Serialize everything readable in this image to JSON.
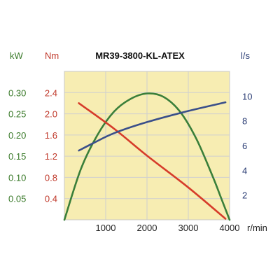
{
  "chart_data": {
    "type": "line",
    "title": "MR39-3800-KL-ATEX",
    "plot_bg": "#f7edb2",
    "grid": true,
    "x": {
      "range": [
        0,
        4000
      ],
      "ticks": [
        1000,
        2000,
        3000,
        4000
      ],
      "tick_labels": [
        "1000",
        "2000",
        "3000",
        "4000"
      ],
      "unit": "r/min",
      "color": "#222222"
    },
    "axes": {
      "power": {
        "unit": "kW",
        "range": [
          0,
          0.35
        ],
        "ticks": [
          0.05,
          0.1,
          0.15,
          0.2,
          0.25,
          0.3
        ],
        "tick_labels": [
          "0.05",
          "0.10",
          "0.15",
          "0.20",
          "0.25",
          "0.30"
        ],
        "color": "#3a7a2a"
      },
      "torque": {
        "unit": "Nm",
        "range": [
          0,
          2.8
        ],
        "ticks": [
          0.4,
          0.8,
          1.2,
          1.6,
          2.0,
          2.4
        ],
        "tick_labels": [
          "0.4",
          "0.8",
          "1.2",
          "1.6",
          "2.0",
          "2.4"
        ],
        "color": "#c0392b"
      },
      "flow": {
        "unit": "l/s",
        "range": [
          0,
          12
        ],
        "ticks": [
          2,
          4,
          6,
          8,
          10
        ],
        "tick_labels": [
          "2",
          "4",
          "6",
          "8",
          "10"
        ],
        "color": "#2c3e75"
      }
    },
    "series": [
      {
        "axis": "power",
        "color": "#3a7f3a",
        "points": [
          [
            0,
            0
          ],
          [
            400,
            0.12
          ],
          [
            800,
            0.2
          ],
          [
            1200,
            0.255
          ],
          [
            1600,
            0.285
          ],
          [
            2000,
            0.298
          ],
          [
            2400,
            0.29
          ],
          [
            2800,
            0.255
          ],
          [
            3200,
            0.19
          ],
          [
            3600,
            0.1
          ],
          [
            3800,
            0.05
          ],
          [
            4000,
            0
          ]
        ]
      },
      {
        "axis": "torque",
        "color": "#d63c2a",
        "points": [
          [
            350,
            2.2
          ],
          [
            1200,
            1.72
          ],
          [
            2000,
            1.21
          ],
          [
            3000,
            0.61
          ],
          [
            3900,
            0.02
          ]
        ]
      },
      {
        "axis": "flow",
        "color": "#3a4f8a",
        "points": [
          [
            350,
            5.6
          ],
          [
            700,
            6.2
          ],
          [
            1200,
            7.0
          ],
          [
            2000,
            7.9
          ],
          [
            3000,
            8.8
          ],
          [
            3900,
            9.5
          ]
        ]
      }
    ]
  }
}
